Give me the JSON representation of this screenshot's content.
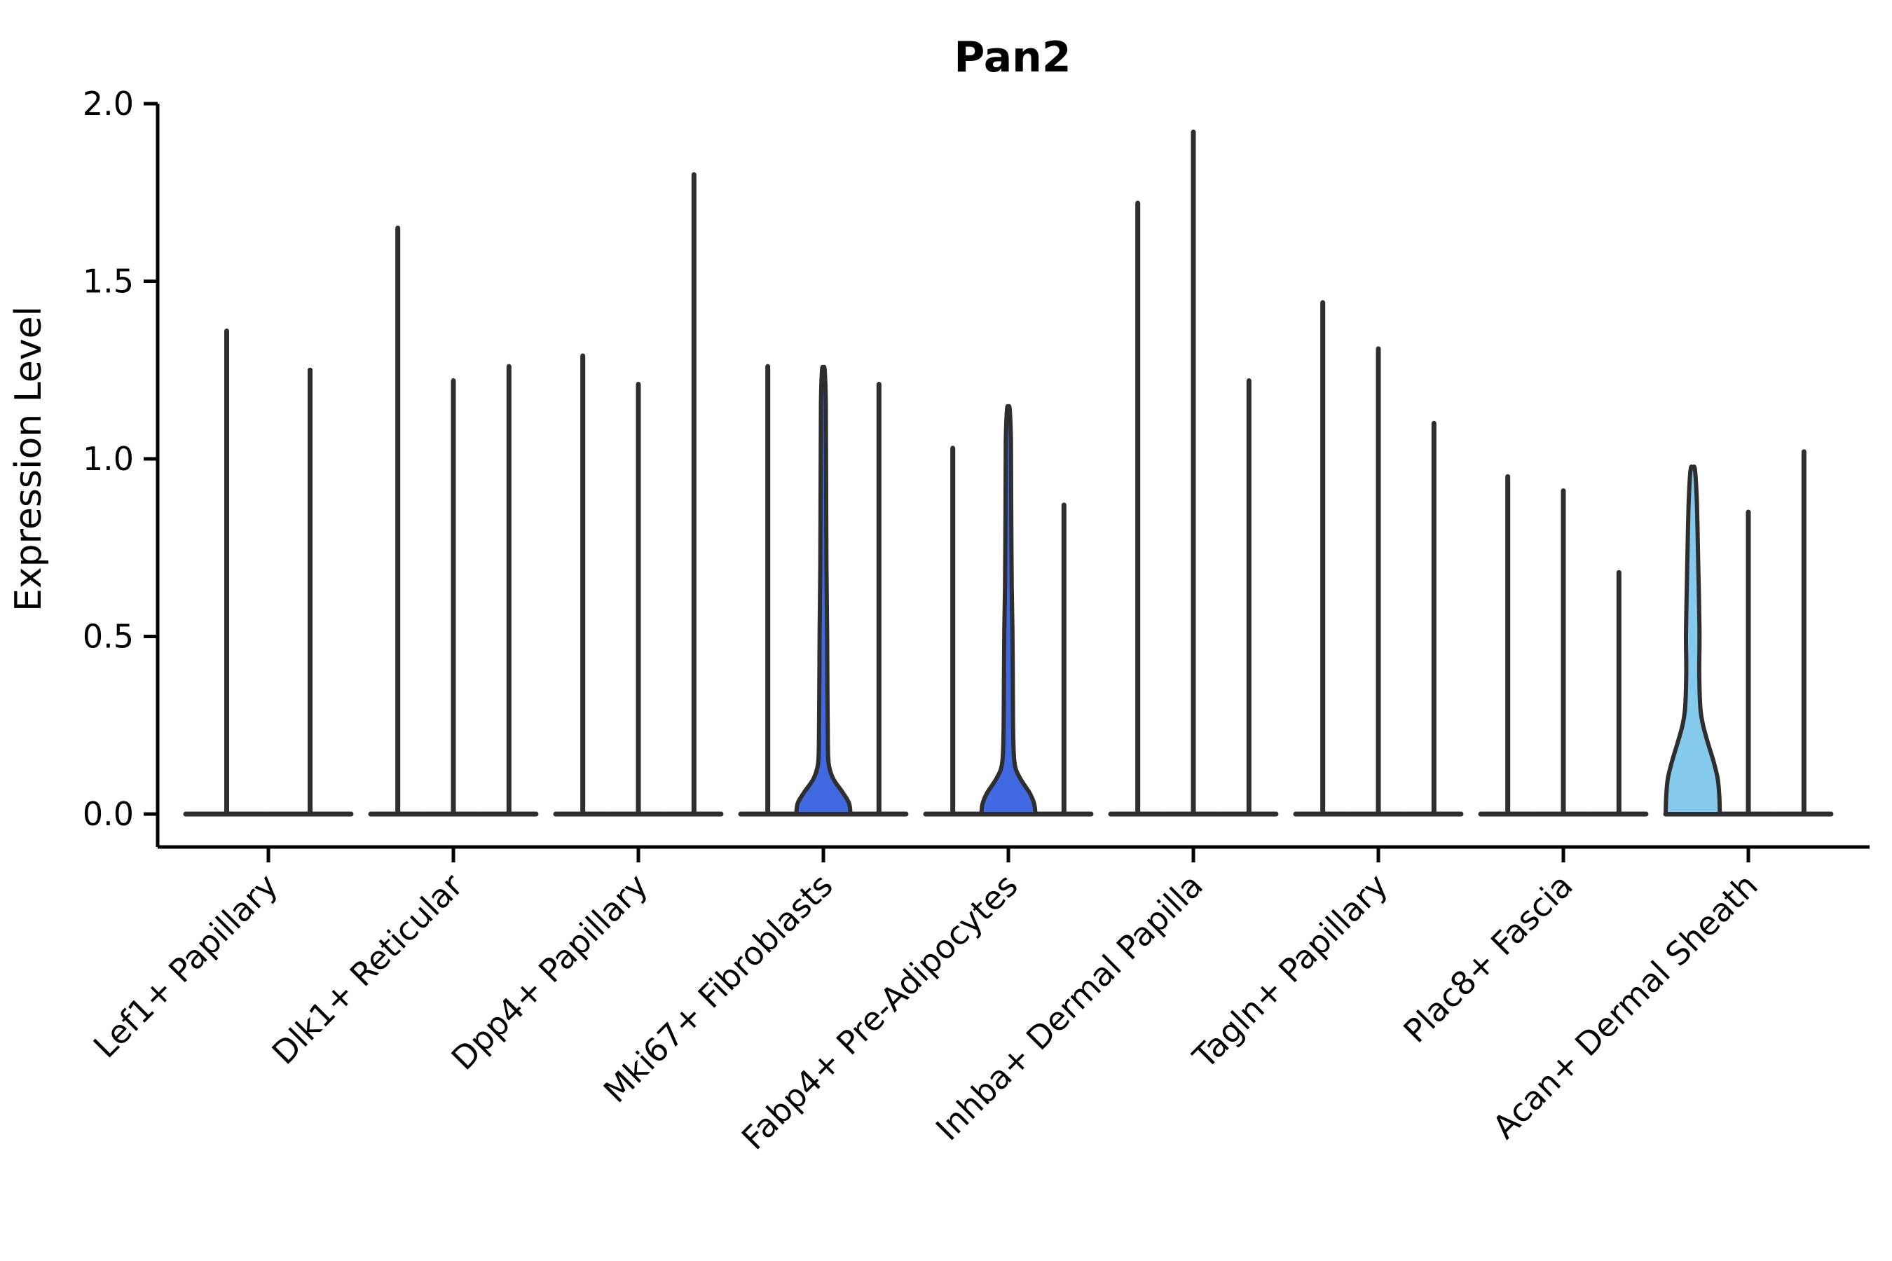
{
  "title": "Pan2",
  "y_axis": {
    "label": "Expression Level",
    "tick_labels": [
      "0.0",
      "0.5",
      "1.0",
      "1.5",
      "2.0"
    ],
    "range": [
      0.0,
      2.0
    ]
  },
  "colors": {
    "royal_blue": "#4169e1",
    "sky_blue": "#85c9ec",
    "violin_outline": "#2e2e2e",
    "axis": "#000000",
    "text": "#000000",
    "background": "#ffffff"
  },
  "chart_data": {
    "type": "violin",
    "title": "Pan2",
    "xlabel": "",
    "ylabel": "Expression Level",
    "ylim": [
      0.0,
      2.0
    ],
    "yticks": [
      0.0,
      0.5,
      1.0,
      1.5,
      2.0
    ],
    "grid": false,
    "legend": "none",
    "description": "Seurat-style stacked violin plot of Pan2 expression; most cells have zero expression so violins collapse to a flat line at 0 with a thin spike to the maximum; three split violins per cell type (two for the first), a few with visible filled density bodies near zero.",
    "categories": [
      "Lef1+ Papillary",
      "Dlk1+ Reticular",
      "Dpp4+ Papillary",
      "Mki67+ Fibroblasts",
      "Fabp4+ Pre-Adipocytes",
      "Inhba+ Dermal Papilla",
      "Tagln+ Papillary",
      "Plac8+ Fascia",
      "Acan+ Dermal Sheath"
    ],
    "groups": [
      {
        "category": "Lef1+ Papillary",
        "violins": [
          {
            "max": 1.36
          },
          {
            "max": 1.25
          }
        ]
      },
      {
        "category": "Dlk1+ Reticular",
        "violins": [
          {
            "max": 1.65
          },
          {
            "max": 1.22
          },
          {
            "max": 1.26
          }
        ]
      },
      {
        "category": "Dpp4+ Papillary",
        "violins": [
          {
            "max": 1.29
          },
          {
            "max": 1.21
          },
          {
            "max": 1.8
          }
        ]
      },
      {
        "category": "Mki67+ Fibroblasts",
        "violins": [
          {
            "max": 1.26
          },
          {
            "max": 1.25,
            "fill": "royal_blue",
            "profile": [
              [
                0,
                1.0
              ],
              [
                0.03,
                0.95
              ],
              [
                0.06,
                0.72
              ],
              [
                0.1,
                0.36
              ],
              [
                0.14,
                0.2
              ],
              [
                0.2,
                0.165
              ],
              [
                0.35,
                0.15
              ],
              [
                0.5,
                0.14
              ],
              [
                0.7,
                0.115
              ],
              [
                0.95,
                0.1
              ],
              [
                1.15,
                0.09
              ],
              [
                1.25,
                0.05
              ]
            ]
          },
          {
            "max": 1.21
          }
        ]
      },
      {
        "category": "Fabp4+ Pre-Adipocytes",
        "violins": [
          {
            "max": 1.03
          },
          {
            "max": 1.14,
            "fill": "royal_blue",
            "profile": [
              [
                0,
                1.0
              ],
              [
                0.03,
                0.95
              ],
              [
                0.06,
                0.78
              ],
              [
                0.1,
                0.44
              ],
              [
                0.14,
                0.235
              ],
              [
                0.22,
                0.18
              ],
              [
                0.36,
                0.165
              ],
              [
                0.52,
                0.15
              ],
              [
                0.64,
                0.125
              ],
              [
                0.85,
                0.105
              ],
              [
                1.05,
                0.095
              ],
              [
                1.14,
                0.05
              ]
            ]
          },
          {
            "max": 0.87
          }
        ]
      },
      {
        "category": "Inhba+ Dermal Papilla",
        "violins": [
          {
            "max": 1.72
          },
          {
            "max": 1.92
          },
          {
            "max": 1.22
          }
        ]
      },
      {
        "category": "Tagln+ Papillary",
        "violins": [
          {
            "max": 1.44
          },
          {
            "max": 1.31
          },
          {
            "max": 1.1
          }
        ]
      },
      {
        "category": "Plac8+ Fascia",
        "violins": [
          {
            "max": 0.95
          },
          {
            "max": 0.91
          },
          {
            "max": 0.68
          }
        ]
      },
      {
        "category": "Acan+ Dermal Sheath",
        "violins": [
          {
            "max": 0.97,
            "fill": "sky_blue",
            "profile": [
              [
                0,
                1.0
              ],
              [
                0.05,
                0.98
              ],
              [
                0.1,
                0.92
              ],
              [
                0.15,
                0.76
              ],
              [
                0.2,
                0.56
              ],
              [
                0.25,
                0.38
              ],
              [
                0.3,
                0.28
              ],
              [
                0.4,
                0.24
              ],
              [
                0.5,
                0.25
              ],
              [
                0.6,
                0.23
              ],
              [
                0.75,
                0.19
              ],
              [
                0.88,
                0.15
              ],
              [
                0.97,
                0.08
              ]
            ]
          },
          {
            "max": 0.85
          },
          {
            "max": 1.02
          }
        ]
      }
    ]
  }
}
